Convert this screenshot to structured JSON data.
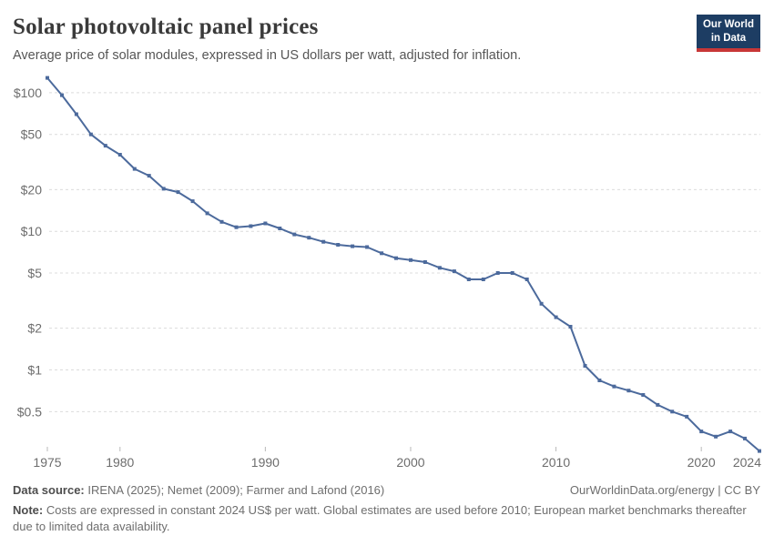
{
  "header": {
    "title": "Solar photovoltaic panel prices",
    "subtitle": "Average price of solar modules, expressed in US dollars per watt, adjusted for inflation.",
    "logo": {
      "line1": "Our World",
      "line2": "in Data",
      "bg_color": "#1d3d63",
      "accent_color": "#c83737"
    }
  },
  "chart_data": {
    "type": "line",
    "title": "Solar photovoltaic panel prices",
    "xlabel": "",
    "ylabel": "",
    "yscale": "log",
    "ylim": [
      0.2,
      150
    ],
    "xlim": [
      1975,
      2024
    ],
    "grid": "dashed horizontal",
    "legend": "none",
    "line_color": "#4c6a9c",
    "grid_color": "#dcdcdc",
    "tick_color": "#b9b9b9",
    "label_color": "#6d6d6d",
    "yticks": [
      100,
      50,
      20,
      10,
      5,
      2,
      1,
      0.5
    ],
    "ytick_labels": [
      "$100",
      "$50",
      "$20",
      "$10",
      "$5",
      "$2",
      "$1",
      "$0.5"
    ],
    "xticks": [
      {
        "year": 1975,
        "label": "1975",
        "tick": true
      },
      {
        "year": 1980,
        "label": "1980",
        "tick": true
      },
      {
        "year": 1990,
        "label": "1990",
        "tick": true
      },
      {
        "year": 2000,
        "label": "2000",
        "tick": true
      },
      {
        "year": 2010,
        "label": "2010",
        "tick": true
      },
      {
        "year": 2020,
        "label": "2020",
        "tick": true
      },
      {
        "year": 2024,
        "label": "2024",
        "tick": false
      }
    ],
    "x": [
      1975,
      1976,
      1977,
      1978,
      1979,
      1980,
      1981,
      1982,
      1983,
      1984,
      1985,
      1986,
      1987,
      1988,
      1989,
      1990,
      1991,
      1992,
      1993,
      1994,
      1995,
      1996,
      1997,
      1998,
      1999,
      2000,
      2001,
      2002,
      2003,
      2004,
      2005,
      2006,
      2007,
      2008,
      2009,
      2010,
      2011,
      2012,
      2013,
      2014,
      2015,
      2016,
      2017,
      2018,
      2019,
      2020,
      2021,
      2022,
      2023,
      2024
    ],
    "values": [
      128,
      96,
      70,
      50,
      41.5,
      35.7,
      28.2,
      25.2,
      20.3,
      19.2,
      16.5,
      13.5,
      11.7,
      10.7,
      10.9,
      11.4,
      10.5,
      9.5,
      9.0,
      8.4,
      8.0,
      7.8,
      7.7,
      6.95,
      6.4,
      6.2,
      6.0,
      5.45,
      5.15,
      4.5,
      4.5,
      5.0,
      5.0,
      4.5,
      3.0,
      2.4,
      2.05,
      1.07,
      0.84,
      0.76,
      0.71,
      0.66,
      0.56,
      0.5,
      0.46,
      0.36,
      0.33,
      0.36,
      0.32,
      0.26
    ]
  },
  "footer": {
    "source_label": "Data source:",
    "source_value": " IRENA (2025); Nemet (2009); Farmer and Lafond (2016)",
    "url": "OurWorldinData.org/energy",
    "license": " | CC BY",
    "note_label": "Note:",
    "note_value": " Costs are expressed in constant 2024 US$ per watt. Global estimates are used before 2010; European market benchmarks thereafter due to limited data availability."
  }
}
